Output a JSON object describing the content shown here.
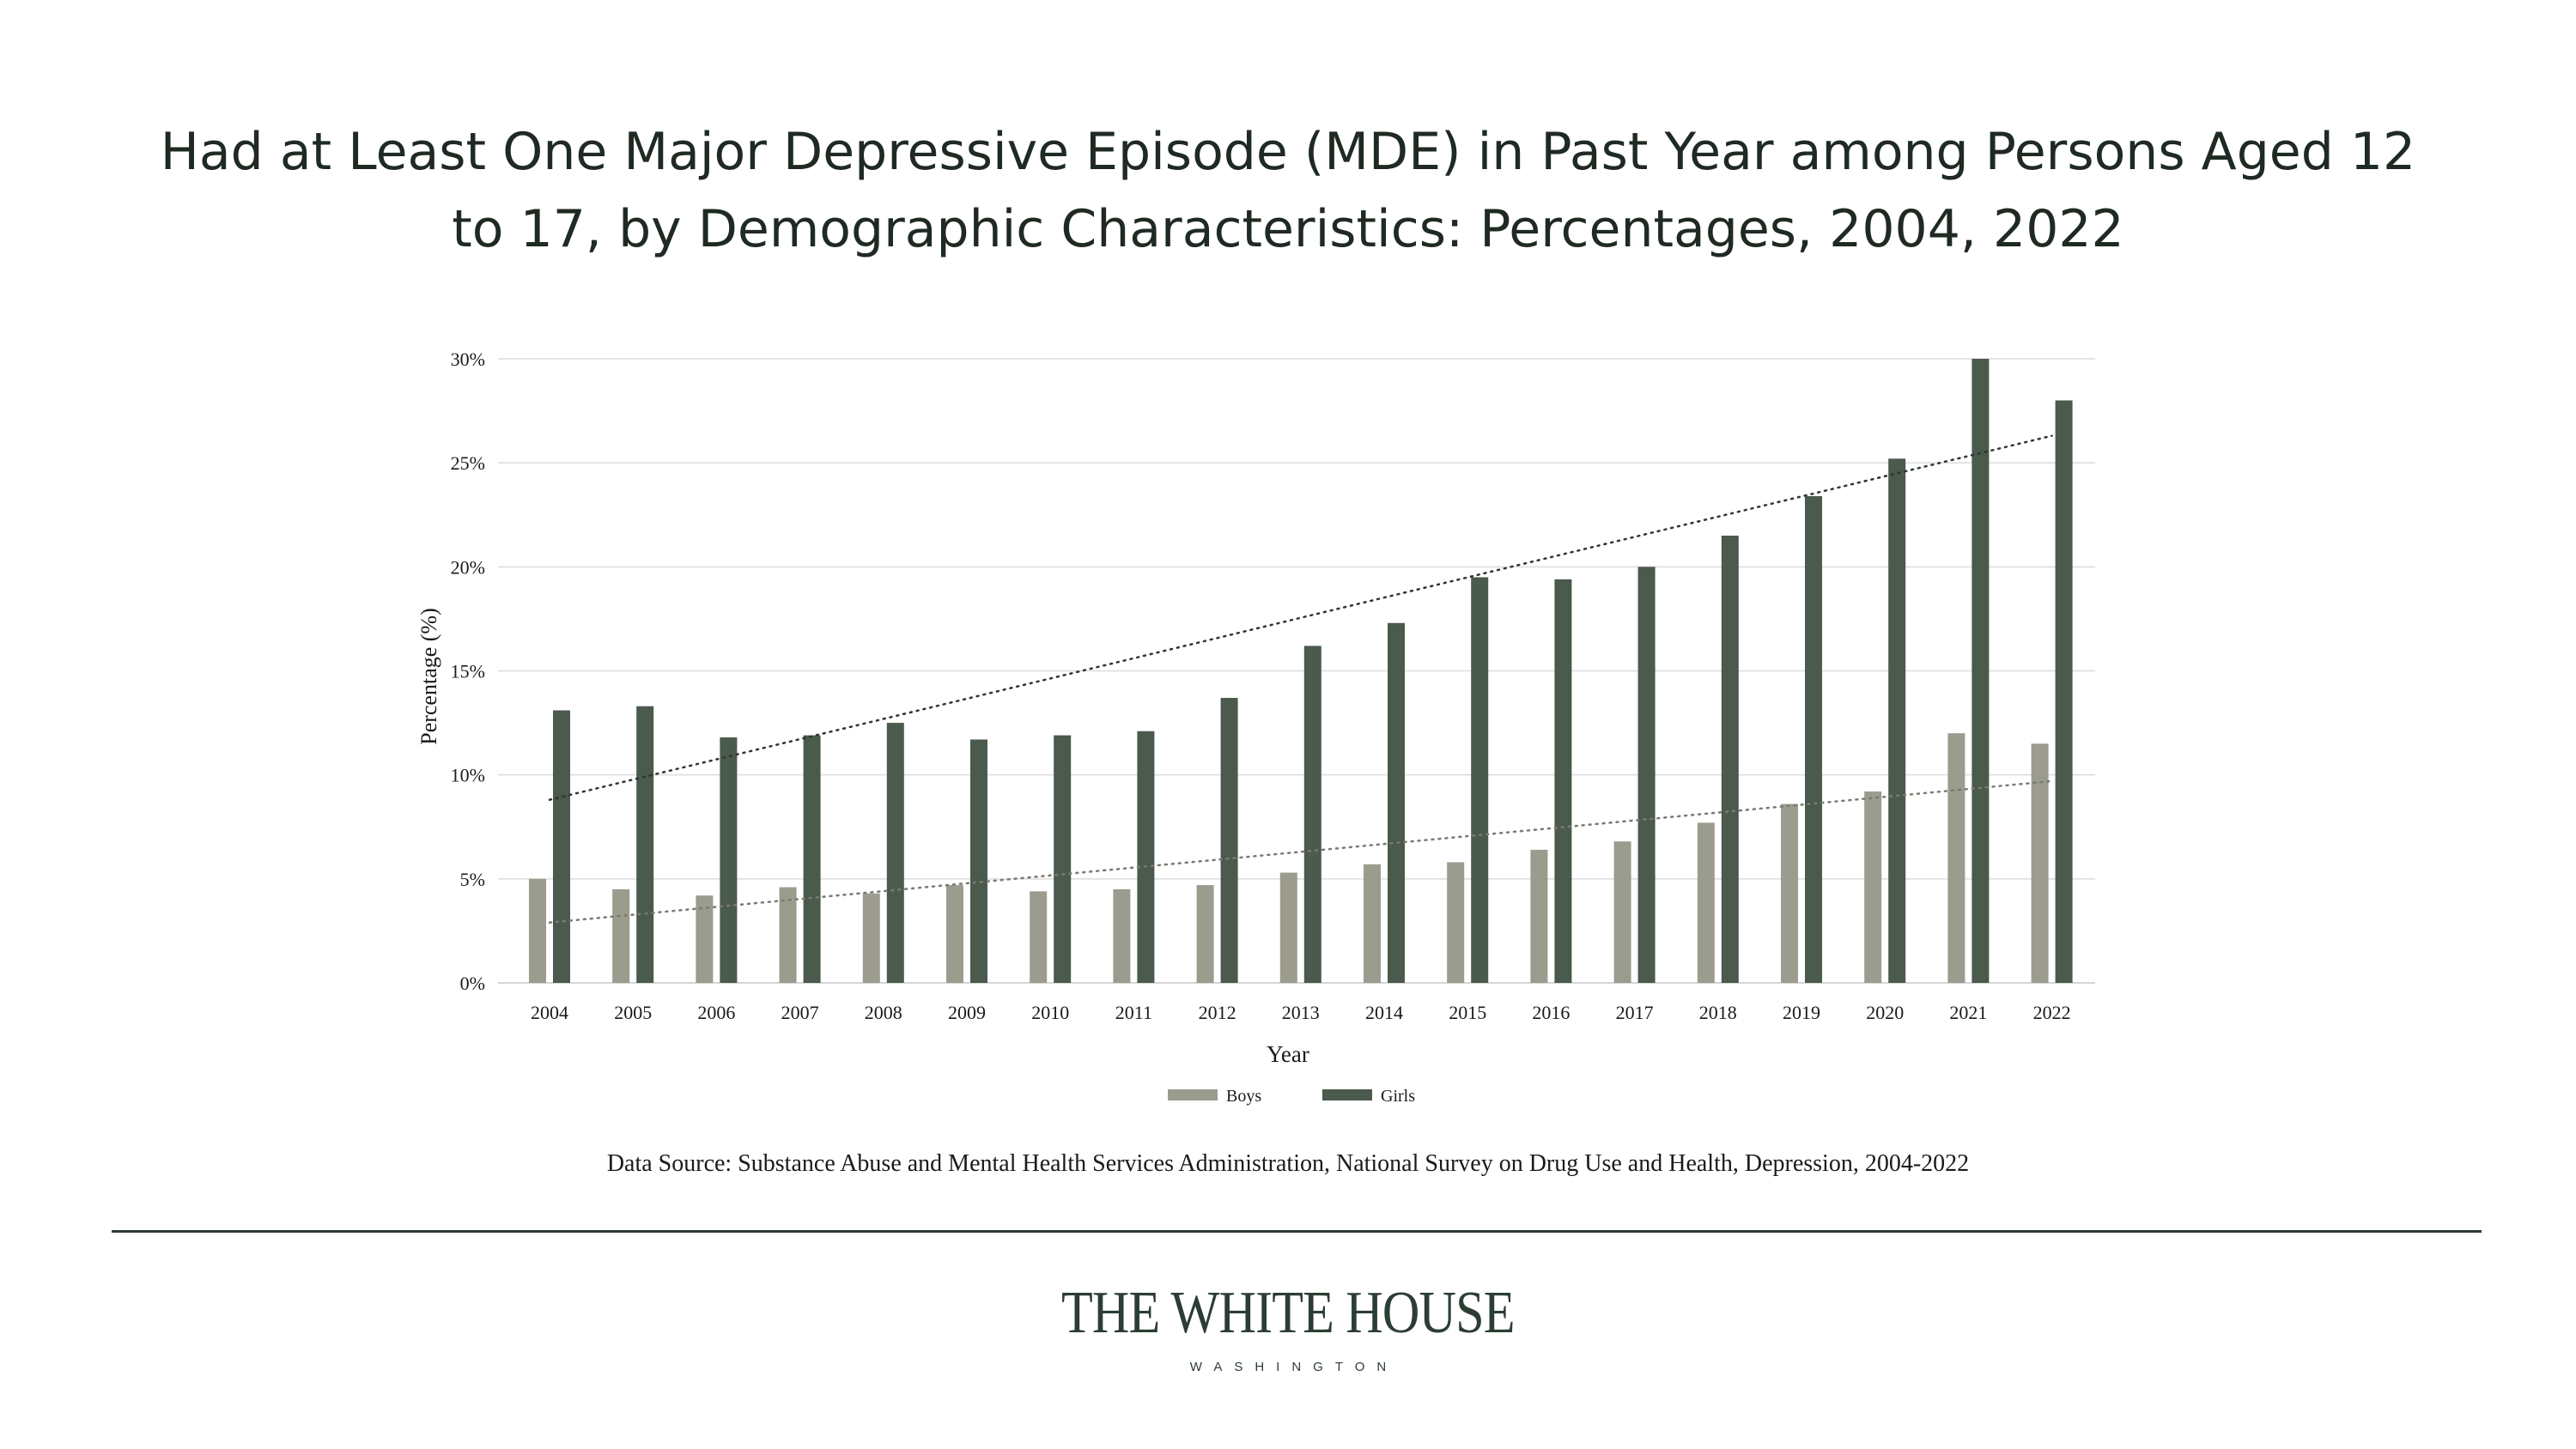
{
  "page": {
    "title_line1": "Had at Least One Major Depressive Episode (MDE) in Past Year among Persons Aged 12",
    "title_line2": "to 17, by Demographic Characteristics: Percentages, 2004, 2022",
    "source": "Data Source: Substance Abuse and Mental Health Services Administration, National Survey on Drug Use and Health, Depression, 2004-2022",
    "logo_main": "THE WHITE HOUSE",
    "logo_sub": "WASHINGTON"
  },
  "colors": {
    "boys": "#9b9c8e",
    "girls": "#4a5a4c",
    "grid": "#dcdcdc",
    "text": "#1a1a1a"
  },
  "chart_data": {
    "type": "bar",
    "title": "Had at Least One Major Depressive Episode (MDE) in Past Year among Persons Aged 12 to 17, by Demographic Characteristics: Percentages, 2004, 2022",
    "xlabel": "Year",
    "ylabel": "Percentage (%)",
    "ylim": [
      0,
      30
    ],
    "yticks": [
      0,
      5,
      10,
      15,
      20,
      25,
      30
    ],
    "ytick_labels": [
      "0%",
      "5%",
      "10%",
      "15%",
      "20%",
      "25%",
      "30%"
    ],
    "grid": true,
    "legend_position": "bottom-center",
    "categories": [
      "2004",
      "2005",
      "2006",
      "2007",
      "2008",
      "2009",
      "2010",
      "2011",
      "2012",
      "2013",
      "2014",
      "2015",
      "2016",
      "2017",
      "2018",
      "2019",
      "2020",
      "2021",
      "2022"
    ],
    "series": [
      {
        "name": "Boys",
        "values": [
          5.0,
          4.5,
          4.2,
          4.6,
          4.3,
          4.7,
          4.4,
          4.5,
          4.7,
          5.3,
          5.7,
          5.8,
          6.4,
          6.8,
          7.7,
          8.6,
          9.2,
          12.0,
          11.5
        ],
        "trendline": [
          2.9,
          9.7
        ]
      },
      {
        "name": "Girls",
        "values": [
          13.1,
          13.3,
          11.8,
          11.9,
          12.5,
          11.7,
          11.9,
          12.1,
          13.7,
          16.2,
          17.3,
          19.5,
          19.4,
          20.0,
          21.5,
          23.4,
          25.2,
          30.0,
          28.0
        ],
        "trendline": [
          8.8,
          26.3
        ]
      }
    ]
  }
}
